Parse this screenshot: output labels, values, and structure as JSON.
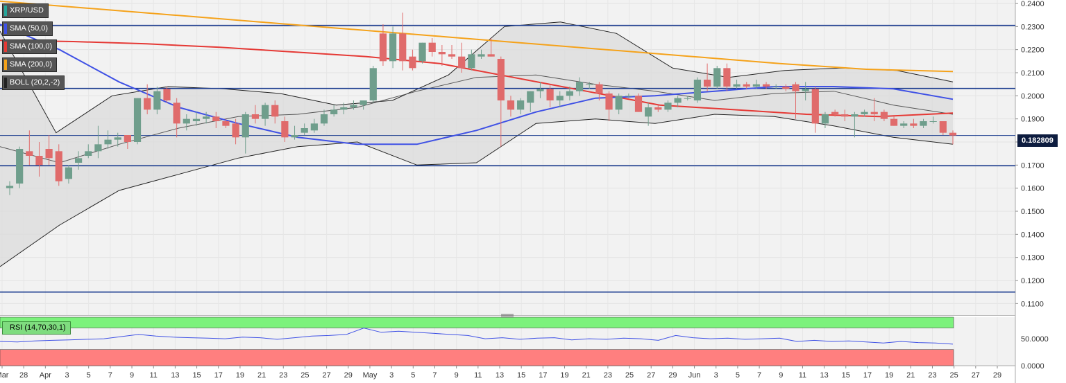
{
  "legends": [
    {
      "text": "XRP/USD",
      "color": "#26a69a"
    },
    {
      "text": "SMA (50,0)",
      "color": "#3f51e5"
    },
    {
      "text": "SMA (100,0)",
      "color": "#e53935"
    },
    {
      "text": "SMA (200,0)",
      "color": "#f5a21a"
    },
    {
      "text": "BOLL (20,2,-2)",
      "color": "#222222"
    }
  ],
  "rsi_label": "RSI (14,70,30,1)",
  "last_price": "0.182809",
  "colors": {
    "up": "#6f9e8c",
    "down": "#e06b6b",
    "sma50": "#3f51e5",
    "sma100": "#e53935",
    "sma200": "#f5a21a",
    "boll_fill": "#dcdcdc",
    "hline": "#1a3b8e",
    "rsi_over": "#7cf27c",
    "rsi_under": "#ff7f7f",
    "rsi_line": "#3f51e5"
  },
  "chart_data": {
    "type": "candlestick",
    "y_axis": {
      "range": [
        0.105,
        0.2415
      ],
      "ticks": [
        "0.2400",
        "0.2300",
        "0.2200",
        "0.2100",
        "0.2000",
        "0.1900",
        "0.1800",
        "0.1700",
        "0.1600",
        "0.1500",
        "0.1400",
        "0.1300",
        "0.1200",
        "0.1100"
      ]
    },
    "rsi_axis": {
      "range": [
        0,
        90
      ],
      "ticks": [
        "50.0000",
        "0.0000"
      ]
    },
    "x_labels": [
      "Mar",
      "28",
      "Apr",
      "3",
      "5",
      "7",
      "9",
      "11",
      "13",
      "15",
      "17",
      "19",
      "21",
      "23",
      "25",
      "27",
      "29",
      "May",
      "3",
      "5",
      "7",
      "9",
      "11",
      "13",
      "15",
      "17",
      "19",
      "21",
      "23",
      "25",
      "27",
      "29",
      "Jun",
      "3",
      "5",
      "7",
      "9",
      "11",
      "13",
      "15",
      "17",
      "19",
      "21",
      "23",
      "25",
      "27",
      "29"
    ],
    "horizontal_levels": [
      0.2305,
      0.2032,
      0.1828,
      0.1697,
      0.115
    ],
    "candles": [
      {
        "o": 0.16,
        "h": 0.163,
        "l": 0.157,
        "c": 0.161
      },
      {
        "o": 0.162,
        "h": 0.178,
        "l": 0.16,
        "c": 0.177
      },
      {
        "o": 0.176,
        "h": 0.185,
        "l": 0.17,
        "c": 0.174
      },
      {
        "o": 0.174,
        "h": 0.18,
        "l": 0.165,
        "c": 0.17
      },
      {
        "o": 0.177,
        "h": 0.183,
        "l": 0.17,
        "c": 0.173
      },
      {
        "o": 0.176,
        "h": 0.179,
        "l": 0.161,
        "c": 0.163
      },
      {
        "o": 0.164,
        "h": 0.17,
        "l": 0.162,
        "c": 0.169
      },
      {
        "o": 0.171,
        "h": 0.176,
        "l": 0.168,
        "c": 0.173
      },
      {
        "o": 0.174,
        "h": 0.179,
        "l": 0.173,
        "c": 0.176
      },
      {
        "o": 0.176,
        "h": 0.187,
        "l": 0.173,
        "c": 0.179
      },
      {
        "o": 0.179,
        "h": 0.185,
        "l": 0.177,
        "c": 0.181
      },
      {
        "o": 0.181,
        "h": 0.184,
        "l": 0.178,
        "c": 0.182
      },
      {
        "o": 0.183,
        "h": 0.183,
        "l": 0.177,
        "c": 0.18
      },
      {
        "o": 0.18,
        "h": 0.199,
        "l": 0.179,
        "c": 0.199
      },
      {
        "o": 0.199,
        "h": 0.205,
        "l": 0.192,
        "c": 0.194
      },
      {
        "o": 0.194,
        "h": 0.204,
        "l": 0.192,
        "c": 0.202
      },
      {
        "o": 0.203,
        "h": 0.204,
        "l": 0.197,
        "c": 0.198
      },
      {
        "o": 0.197,
        "h": 0.199,
        "l": 0.182,
        "c": 0.188
      },
      {
        "o": 0.188,
        "h": 0.192,
        "l": 0.185,
        "c": 0.19
      },
      {
        "o": 0.189,
        "h": 0.193,
        "l": 0.187,
        "c": 0.19
      },
      {
        "o": 0.19,
        "h": 0.193,
        "l": 0.188,
        "c": 0.191
      },
      {
        "o": 0.191,
        "h": 0.193,
        "l": 0.186,
        "c": 0.189
      },
      {
        "o": 0.189,
        "h": 0.19,
        "l": 0.186,
        "c": 0.187
      },
      {
        "o": 0.188,
        "h": 0.19,
        "l": 0.179,
        "c": 0.182
      },
      {
        "o": 0.182,
        "h": 0.193,
        "l": 0.175,
        "c": 0.192
      },
      {
        "o": 0.192,
        "h": 0.196,
        "l": 0.188,
        "c": 0.19
      },
      {
        "o": 0.19,
        "h": 0.197,
        "l": 0.187,
        "c": 0.196
      },
      {
        "o": 0.196,
        "h": 0.198,
        "l": 0.188,
        "c": 0.191
      },
      {
        "o": 0.189,
        "h": 0.191,
        "l": 0.18,
        "c": 0.182
      },
      {
        "o": 0.182,
        "h": 0.187,
        "l": 0.181,
        "c": 0.183
      },
      {
        "o": 0.184,
        "h": 0.188,
        "l": 0.183,
        "c": 0.186
      },
      {
        "o": 0.185,
        "h": 0.19,
        "l": 0.184,
        "c": 0.188
      },
      {
        "o": 0.188,
        "h": 0.194,
        "l": 0.187,
        "c": 0.192
      },
      {
        "o": 0.192,
        "h": 0.196,
        "l": 0.191,
        "c": 0.194
      },
      {
        "o": 0.194,
        "h": 0.197,
        "l": 0.192,
        "c": 0.195
      },
      {
        "o": 0.195,
        "h": 0.198,
        "l": 0.194,
        "c": 0.196
      },
      {
        "o": 0.196,
        "h": 0.198,
        "l": 0.194,
        "c": 0.198
      },
      {
        "o": 0.198,
        "h": 0.213,
        "l": 0.197,
        "c": 0.212
      },
      {
        "o": 0.227,
        "h": 0.231,
        "l": 0.213,
        "c": 0.215
      },
      {
        "o": 0.215,
        "h": 0.23,
        "l": 0.212,
        "c": 0.227
      },
      {
        "o": 0.227,
        "h": 0.236,
        "l": 0.211,
        "c": 0.215
      },
      {
        "o": 0.217,
        "h": 0.22,
        "l": 0.211,
        "c": 0.212
      },
      {
        "o": 0.215,
        "h": 0.223,
        "l": 0.214,
        "c": 0.223
      },
      {
        "o": 0.223,
        "h": 0.225,
        "l": 0.217,
        "c": 0.219
      },
      {
        "o": 0.219,
        "h": 0.222,
        "l": 0.213,
        "c": 0.218
      },
      {
        "o": 0.218,
        "h": 0.222,
        "l": 0.216,
        "c": 0.217
      },
      {
        "o": 0.217,
        "h": 0.223,
        "l": 0.21,
        "c": 0.212
      },
      {
        "o": 0.212,
        "h": 0.22,
        "l": 0.211,
        "c": 0.218
      },
      {
        "o": 0.217,
        "h": 0.22,
        "l": 0.216,
        "c": 0.218
      },
      {
        "o": 0.218,
        "h": 0.225,
        "l": 0.217,
        "c": 0.217
      },
      {
        "o": 0.216,
        "h": 0.217,
        "l": 0.178,
        "c": 0.198
      },
      {
        "o": 0.198,
        "h": 0.2,
        "l": 0.191,
        "c": 0.194
      },
      {
        "o": 0.194,
        "h": 0.199,
        "l": 0.192,
        "c": 0.198
      },
      {
        "o": 0.197,
        "h": 0.202,
        "l": 0.193,
        "c": 0.202
      },
      {
        "o": 0.202,
        "h": 0.206,
        "l": 0.199,
        "c": 0.203
      },
      {
        "o": 0.203,
        "h": 0.205,
        "l": 0.195,
        "c": 0.198
      },
      {
        "o": 0.198,
        "h": 0.202,
        "l": 0.195,
        "c": 0.2
      },
      {
        "o": 0.2,
        "h": 0.204,
        "l": 0.198,
        "c": 0.202
      },
      {
        "o": 0.202,
        "h": 0.208,
        "l": 0.2,
        "c": 0.206
      },
      {
        "o": 0.205,
        "h": 0.206,
        "l": 0.203,
        "c": 0.205
      },
      {
        "o": 0.205,
        "h": 0.206,
        "l": 0.198,
        "c": 0.201
      },
      {
        "o": 0.201,
        "h": 0.202,
        "l": 0.189,
        "c": 0.194
      },
      {
        "o": 0.194,
        "h": 0.201,
        "l": 0.192,
        "c": 0.2
      },
      {
        "o": 0.2,
        "h": 0.201,
        "l": 0.199,
        "c": 0.2
      },
      {
        "o": 0.2,
        "h": 0.201,
        "l": 0.193,
        "c": 0.193
      },
      {
        "o": 0.191,
        "h": 0.197,
        "l": 0.187,
        "c": 0.195
      },
      {
        "o": 0.195,
        "h": 0.196,
        "l": 0.193,
        "c": 0.194
      },
      {
        "o": 0.194,
        "h": 0.198,
        "l": 0.193,
        "c": 0.197
      },
      {
        "o": 0.197,
        "h": 0.2,
        "l": 0.195,
        "c": 0.199
      },
      {
        "o": 0.199,
        "h": 0.2,
        "l": 0.198,
        "c": 0.199
      },
      {
        "o": 0.198,
        "h": 0.208,
        "l": 0.197,
        "c": 0.207
      },
      {
        "o": 0.207,
        "h": 0.214,
        "l": 0.202,
        "c": 0.204
      },
      {
        "o": 0.204,
        "h": 0.213,
        "l": 0.203,
        "c": 0.212
      },
      {
        "o": 0.212,
        "h": 0.214,
        "l": 0.202,
        "c": 0.204
      },
      {
        "o": 0.204,
        "h": 0.207,
        "l": 0.203,
        "c": 0.205
      },
      {
        "o": 0.205,
        "h": 0.206,
        "l": 0.203,
        "c": 0.204
      },
      {
        "o": 0.204,
        "h": 0.207,
        "l": 0.203,
        "c": 0.205
      },
      {
        "o": 0.205,
        "h": 0.206,
        "l": 0.203,
        "c": 0.204
      },
      {
        "o": 0.204,
        "h": 0.205,
        "l": 0.203,
        "c": 0.204
      },
      {
        "o": 0.204,
        "h": 0.205,
        "l": 0.202,
        "c": 0.203
      },
      {
        "o": 0.205,
        "h": 0.206,
        "l": 0.19,
        "c": 0.202
      },
      {
        "o": 0.202,
        "h": 0.206,
        "l": 0.198,
        "c": 0.203
      },
      {
        "o": 0.203,
        "h": 0.204,
        "l": 0.184,
        "c": 0.188
      },
      {
        "o": 0.188,
        "h": 0.193,
        "l": 0.186,
        "c": 0.192
      },
      {
        "o": 0.193,
        "h": 0.194,
        "l": 0.191,
        "c": 0.192
      },
      {
        "o": 0.192,
        "h": 0.194,
        "l": 0.189,
        "c": 0.191
      },
      {
        "o": 0.191,
        "h": 0.193,
        "l": 0.182,
        "c": 0.192
      },
      {
        "o": 0.192,
        "h": 0.194,
        "l": 0.191,
        "c": 0.193
      },
      {
        "o": 0.193,
        "h": 0.199,
        "l": 0.189,
        "c": 0.192
      },
      {
        "o": 0.193,
        "h": 0.194,
        "l": 0.189,
        "c": 0.19
      },
      {
        "o": 0.19,
        "h": 0.191,
        "l": 0.187,
        "c": 0.187
      },
      {
        "o": 0.187,
        "h": 0.189,
        "l": 0.186,
        "c": 0.188
      },
      {
        "o": 0.188,
        "h": 0.19,
        "l": 0.186,
        "c": 0.187
      },
      {
        "o": 0.187,
        "h": 0.19,
        "l": 0.186,
        "c": 0.189
      },
      {
        "o": 0.189,
        "h": 0.191,
        "l": 0.188,
        "c": 0.189
      },
      {
        "o": 0.189,
        "h": 0.189,
        "l": 0.183,
        "c": 0.184
      },
      {
        "o": 0.184,
        "h": 0.185,
        "l": 0.179,
        "c": 0.1828
      }
    ],
    "sma200": [
      0.241,
      0.238,
      0.235,
      0.232,
      0.229,
      0.226,
      0.223,
      0.22,
      0.217,
      0.214,
      0.2115,
      0.2105
    ],
    "sma100": [
      0.224,
      0.2235,
      0.2225,
      0.221,
      0.219,
      0.217,
      0.214,
      0.208,
      0.202,
      0.196,
      0.194,
      0.192,
      0.191,
      0.1925
    ],
    "sma50": [
      0.231,
      0.22,
      0.206,
      0.195,
      0.188,
      0.182,
      0.179,
      0.179,
      0.185,
      0.193,
      0.199,
      0.2,
      0.202,
      0.204,
      0.204,
      0.203,
      0.1985
    ],
    "boll_upper": [
      0.228,
      0.184,
      0.2,
      0.204,
      0.203,
      0.201,
      0.196,
      0.198,
      0.209,
      0.23,
      0.232,
      0.227,
      0.212,
      0.208,
      0.211,
      0.212,
      0.211,
      0.206
    ],
    "boll_mid": [
      0.178,
      0.171,
      0.179,
      0.186,
      0.191,
      0.192,
      0.195,
      0.202,
      0.208,
      0.209,
      0.205,
      0.202,
      0.198,
      0.201,
      0.202,
      0.196,
      0.192
    ],
    "boll_lower": [
      0.126,
      0.144,
      0.159,
      0.166,
      0.173,
      0.178,
      0.18,
      0.17,
      0.171,
      0.188,
      0.19,
      0.188,
      0.192,
      0.191,
      0.187,
      0.182,
      0.179
    ],
    "rsi": [
      45,
      44,
      46,
      47,
      48,
      49,
      50,
      54,
      58,
      55,
      53,
      52,
      51,
      50,
      53,
      52,
      49,
      52,
      55,
      56,
      58,
      70,
      62,
      64,
      62,
      60,
      58,
      56,
      50,
      52,
      49,
      51,
      52,
      48,
      50,
      49,
      51,
      50,
      47,
      56,
      52,
      50,
      51,
      49,
      50,
      51,
      45,
      47,
      45,
      46,
      44,
      42,
      45,
      43,
      42,
      40
    ]
  }
}
